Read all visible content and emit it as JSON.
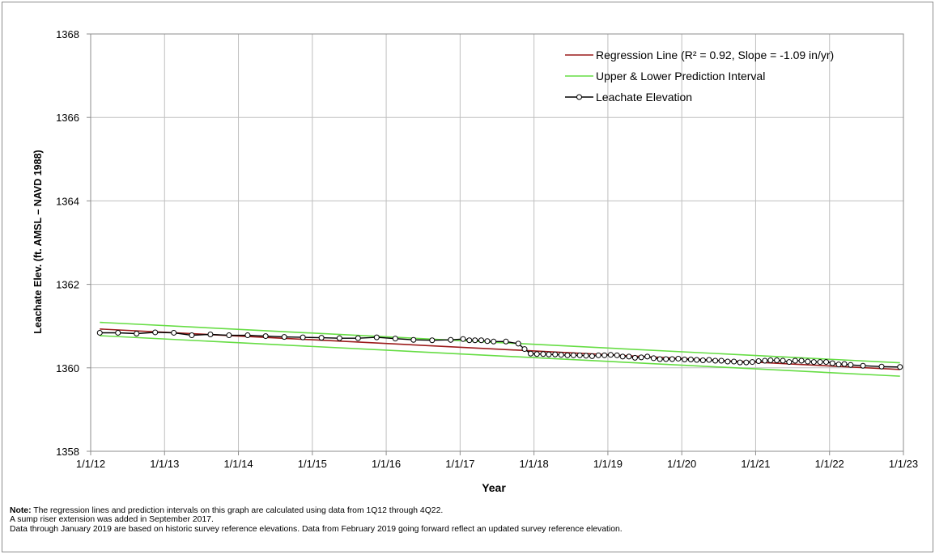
{
  "chart_data": {
    "type": "line",
    "title": "",
    "xlabel": "Year",
    "ylabel": "Leachate Elev. (ft. AMSL – NAVD 1988)",
    "xlim": [
      "2012-01-01",
      "2023-01-01"
    ],
    "ylim": [
      1358,
      1368
    ],
    "x_ticks": [
      "1/1/12",
      "1/1/13",
      "1/1/14",
      "1/1/15",
      "1/1/16",
      "1/1/17",
      "1/1/18",
      "1/1/19",
      "1/1/20",
      "1/1/21",
      "1/1/22",
      "1/1/23"
    ],
    "y_ticks": [
      1358,
      1360,
      1362,
      1364,
      1366,
      1368
    ],
    "grid": true,
    "legend_position": "top-right",
    "series": [
      {
        "name": "Regression Line (R² = 0.92, Slope = -1.09 in/yr)",
        "color": "#9b1b1b",
        "style": "line",
        "x": [
          "2012-02-15",
          "2022-12-15"
        ],
        "y": [
          1360.93,
          1359.96
        ]
      },
      {
        "name": "Upper & Lower Prediction Interval",
        "color": "#66dd44",
        "style": "line",
        "x": [
          "2012-02-15",
          "2022-12-15"
        ],
        "y": [
          1361.09,
          1360.12
        ],
        "lower": {
          "x": [
            "2012-02-15",
            "2022-12-15"
          ],
          "y": [
            1360.77,
            1359.8
          ]
        }
      },
      {
        "name": "Leachate Elevation",
        "color": "#000000",
        "style": "line-markers",
        "x": [
          "2012-02-15",
          "2012-05-15",
          "2012-08-15",
          "2012-11-15",
          "2013-02-15",
          "2013-05-15",
          "2013-08-15",
          "2013-11-15",
          "2014-02-15",
          "2014-05-15",
          "2014-08-15",
          "2014-11-15",
          "2015-02-15",
          "2015-05-15",
          "2015-08-15",
          "2015-11-15",
          "2016-02-15",
          "2016-05-15",
          "2016-08-15",
          "2016-11-15",
          "2017-01-15",
          "2017-02-15",
          "2017-03-15",
          "2017-04-15",
          "2017-05-15",
          "2017-06-15",
          "2017-08-15",
          "2017-10-15",
          "2017-11-15",
          "2017-12-15",
          "2018-01-15",
          "2018-02-15",
          "2018-03-15",
          "2018-04-15",
          "2018-05-15",
          "2018-06-15",
          "2018-07-15",
          "2018-08-15",
          "2018-09-15",
          "2018-10-15",
          "2018-11-15",
          "2018-12-15",
          "2019-01-15",
          "2019-02-15",
          "2019-03-15",
          "2019-04-15",
          "2019-05-15",
          "2019-06-15",
          "2019-07-15",
          "2019-08-15",
          "2019-09-15",
          "2019-10-15",
          "2019-11-15",
          "2019-12-15",
          "2020-01-15",
          "2020-02-15",
          "2020-03-15",
          "2020-04-15",
          "2020-05-15",
          "2020-06-15",
          "2020-07-15",
          "2020-08-15",
          "2020-09-15",
          "2020-10-15",
          "2020-11-15",
          "2020-12-15",
          "2021-01-15",
          "2021-02-15",
          "2021-03-15",
          "2021-04-15",
          "2021-05-15",
          "2021-06-15",
          "2021-07-15",
          "2021-08-15",
          "2021-09-15",
          "2021-10-15",
          "2021-11-15",
          "2021-12-15",
          "2022-01-15",
          "2022-02-15",
          "2022-03-15",
          "2022-04-15",
          "2022-06-15",
          "2022-09-15",
          "2022-12-15"
        ],
        "y": [
          1360.84,
          1360.84,
          1360.82,
          1360.85,
          1360.84,
          1360.78,
          1360.8,
          1360.78,
          1360.78,
          1360.76,
          1360.74,
          1360.73,
          1360.72,
          1360.71,
          1360.71,
          1360.73,
          1360.7,
          1360.67,
          1360.66,
          1360.67,
          1360.69,
          1360.66,
          1360.66,
          1360.66,
          1360.64,
          1360.63,
          1360.63,
          1360.58,
          1360.45,
          1360.34,
          1360.33,
          1360.33,
          1360.32,
          1360.32,
          1360.31,
          1360.3,
          1360.3,
          1360.3,
          1360.29,
          1360.28,
          1360.3,
          1360.3,
          1360.31,
          1360.3,
          1360.27,
          1360.27,
          1360.24,
          1360.25,
          1360.27,
          1360.23,
          1360.21,
          1360.21,
          1360.21,
          1360.22,
          1360.2,
          1360.2,
          1360.19,
          1360.18,
          1360.19,
          1360.17,
          1360.17,
          1360.15,
          1360.15,
          1360.13,
          1360.13,
          1360.14,
          1360.16,
          1360.17,
          1360.18,
          1360.18,
          1360.17,
          1360.14,
          1360.17,
          1360.17,
          1360.15,
          1360.14,
          1360.14,
          1360.14,
          1360.11,
          1360.08,
          1360.09,
          1360.07,
          1360.05,
          1360.03,
          1360.02
        ]
      }
    ]
  },
  "notes": {
    "label": "Note:",
    "line1": "The regression lines and prediction intervals on this graph are calculated using data from 1Q12 through 4Q22.",
    "line2": "A sump riser extension was added in September 2017.",
    "line3": "Data through January 2019 are based on historic survey reference elevations. Data from February 2019 going forward reflect an updated survey reference elevation."
  }
}
